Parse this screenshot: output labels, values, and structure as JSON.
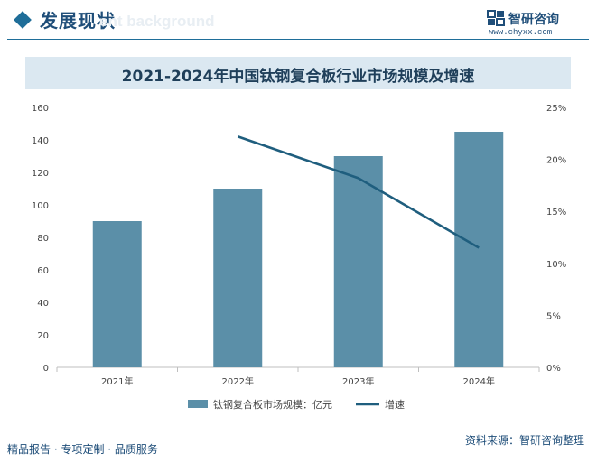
{
  "header": {
    "section_title": "发展现状",
    "ghost_text": "ent background",
    "brand_name": "智研咨询",
    "brand_url": "www.chyxx.com"
  },
  "chart_data": {
    "type": "bar",
    "title": "2021-2024年中国钛钢复合板行业市场规模及增速",
    "categories": [
      "2021年",
      "2022年",
      "2023年",
      "2024年"
    ],
    "series": [
      {
        "name": "钛钢复合板市场规模：亿元",
        "kind": "bar",
        "axis": "left",
        "values": [
          90,
          110,
          130,
          145
        ],
        "color": "#5b8fa8"
      },
      {
        "name": "增速",
        "kind": "line",
        "axis": "right",
        "values": [
          null,
          22.2,
          18.2,
          11.5
        ],
        "color": "#1f5e7e"
      }
    ],
    "ylim": [
      0,
      160
    ],
    "yticks": [
      "0",
      "20",
      "40",
      "60",
      "80",
      "100",
      "120",
      "140",
      "160"
    ],
    "y2lim": [
      0,
      25
    ],
    "y2ticks": [
      "0%",
      "5%",
      "10%",
      "15%",
      "20%",
      "25%"
    ],
    "legend_position": "bottom"
  },
  "footer": {
    "left": "精品报告 · 专项定制 · 品质服务",
    "right": "资料来源：智研咨询整理"
  }
}
